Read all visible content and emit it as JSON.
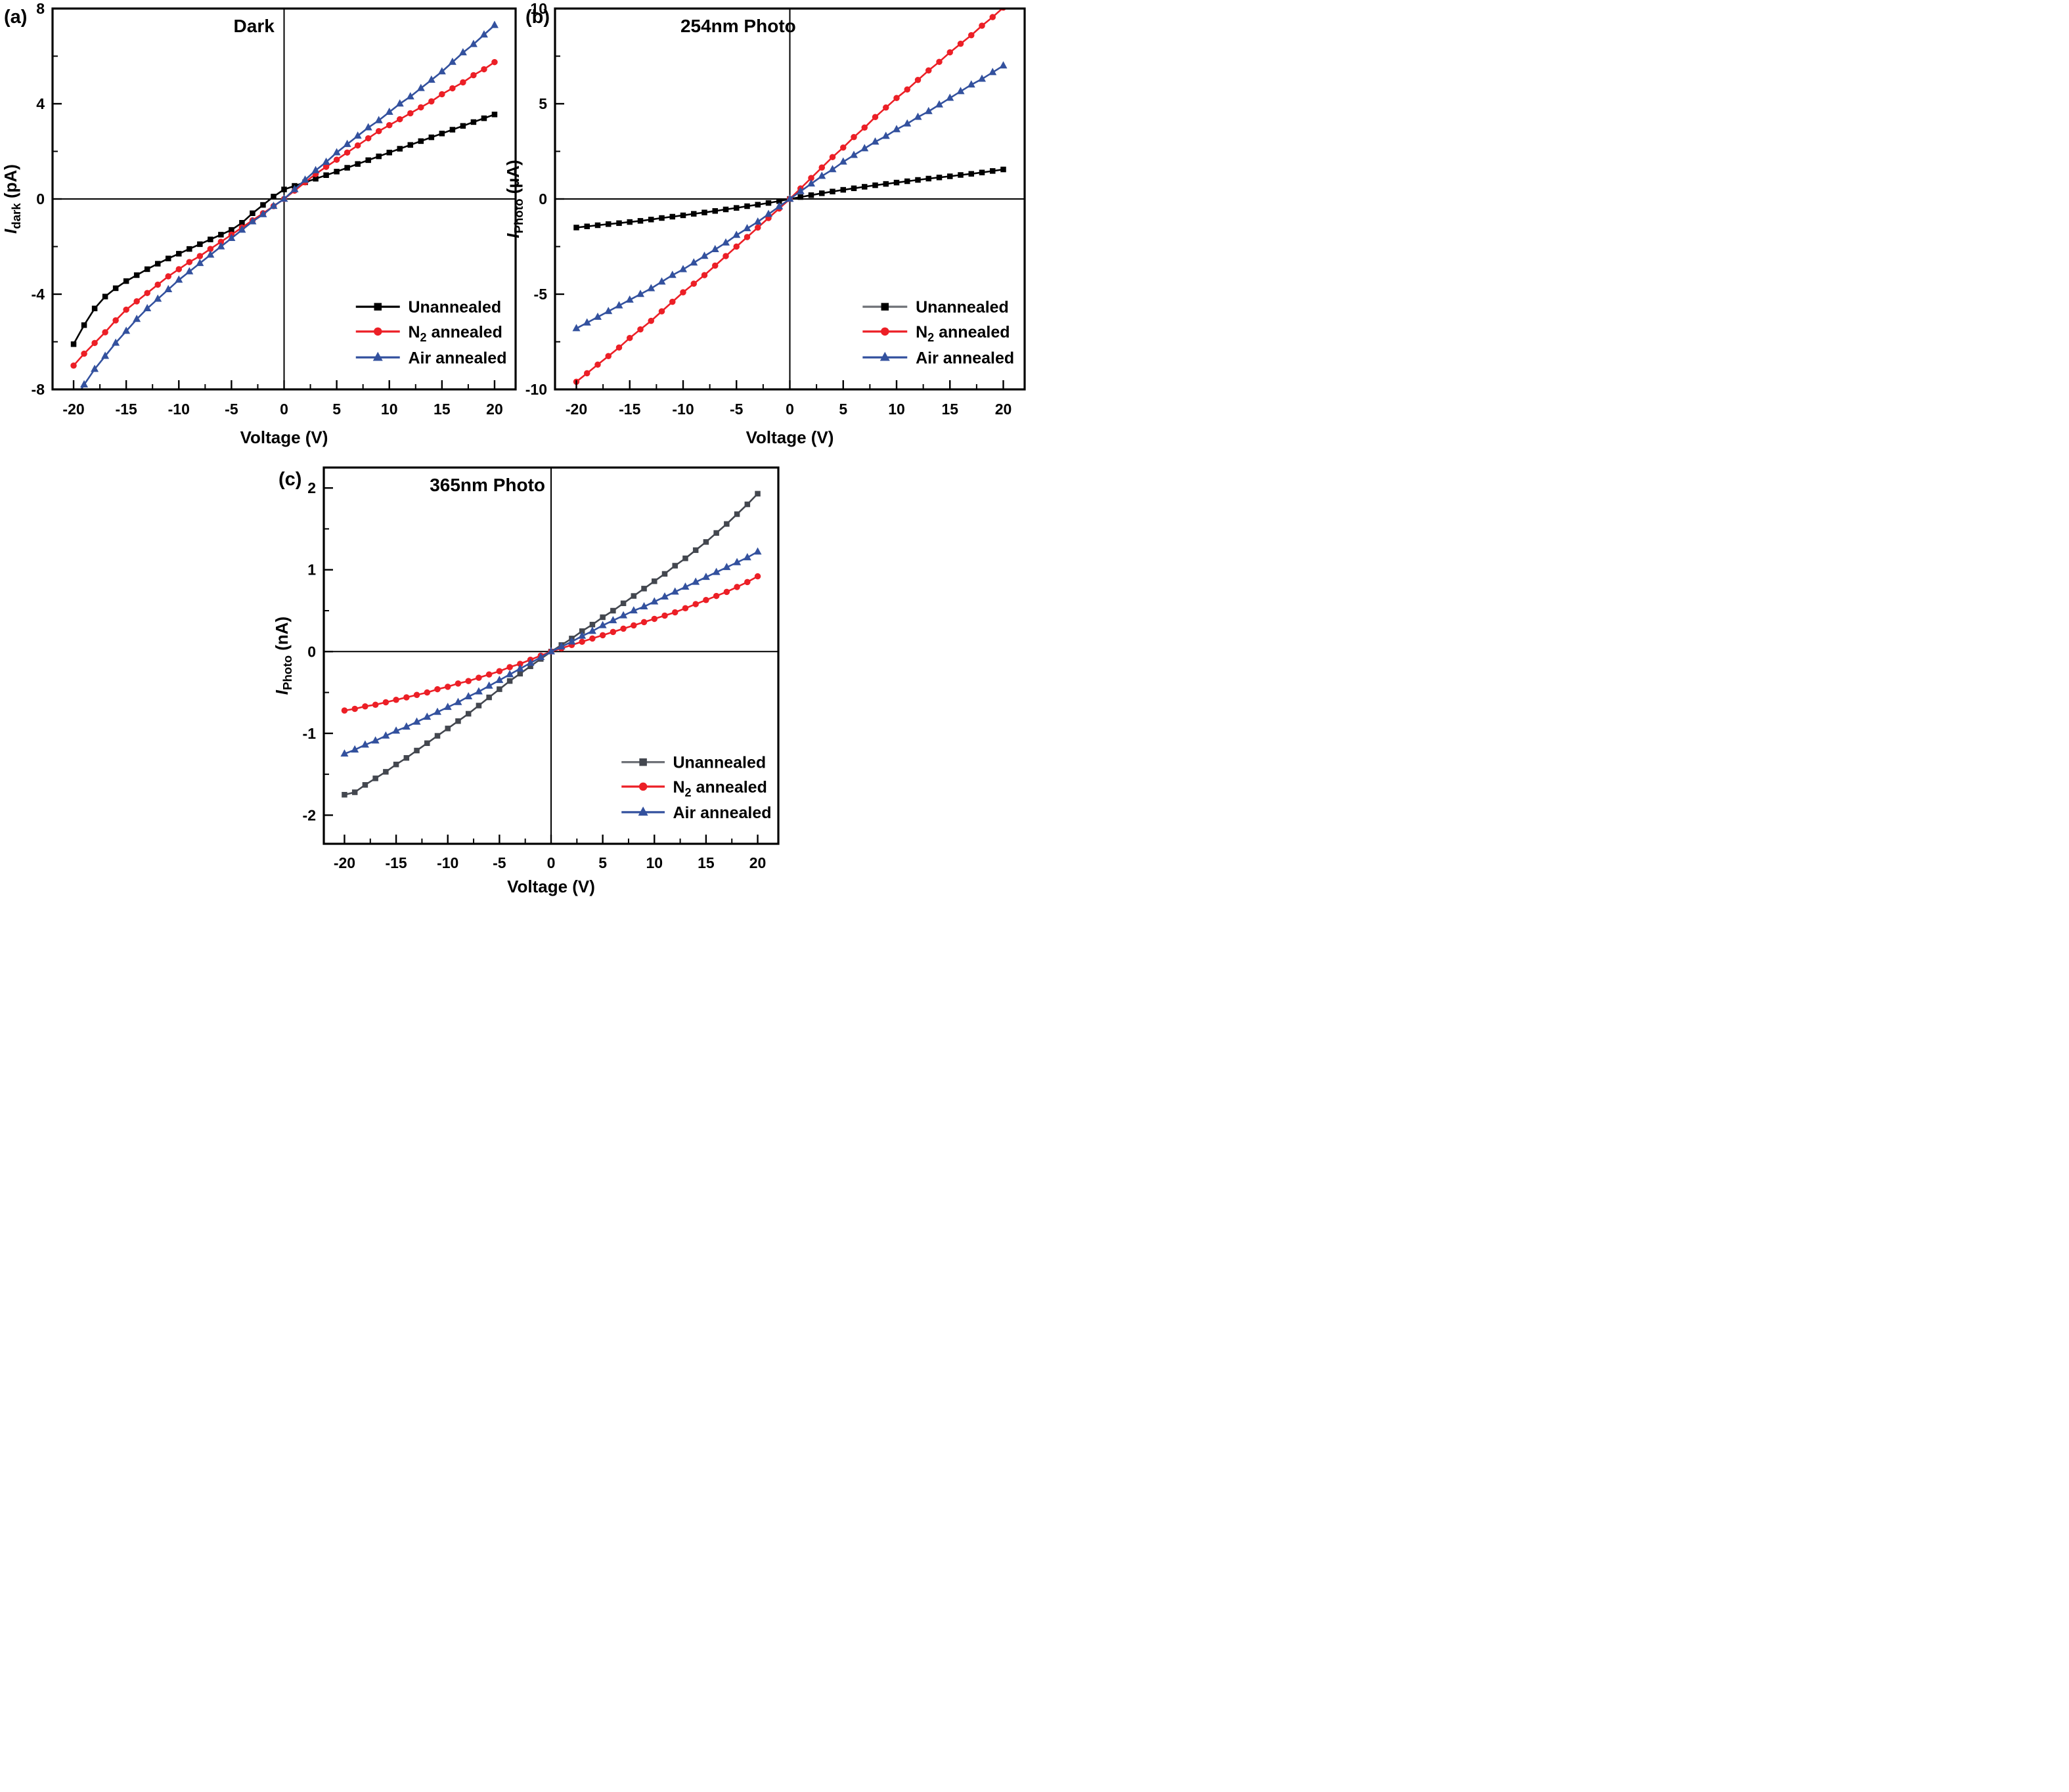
{
  "figure_title": "I-V characteristics panels",
  "colors": {
    "black": "#000000",
    "red": "#ec1f26",
    "blue": "#33519e",
    "gray": "#43474f",
    "legend_gray_line": "#6e7177",
    "axis": "#000000",
    "background": "#ffffff"
  },
  "chart_data": [
    {
      "id": "a",
      "panel_label": "(a)",
      "type": "line",
      "title": "Dark",
      "xlabel": "Voltage (V)",
      "ylabel_segments": [
        {
          "t": "I",
          "i": true
        },
        {
          "t": "dark",
          "s": true
        },
        {
          "t": " (pA)"
        }
      ],
      "xlim": [
        -22,
        22
      ],
      "ylim": [
        -8,
        8
      ],
      "xticks": [
        -20,
        -15,
        -10,
        -5,
        0,
        5,
        10,
        15,
        20
      ],
      "xticks_minor": [
        -17.5,
        -12.5,
        -7.5,
        -2.5,
        2.5,
        7.5,
        12.5,
        17.5
      ],
      "yticks": [
        -8,
        -4,
        0,
        4,
        8
      ],
      "yticks_minor": [
        -6,
        -2,
        2,
        6
      ],
      "zero_lines": true,
      "grid": false,
      "legend_position": "lower-right-inside",
      "x": [
        -20,
        -19,
        -18,
        -17,
        -16,
        -15,
        -14,
        -13,
        -12,
        -11,
        -10,
        -9,
        -8,
        -7,
        -6,
        -5,
        -4,
        -3,
        -2,
        -1,
        0,
        1,
        2,
        3,
        4,
        5,
        6,
        7,
        8,
        9,
        10,
        11,
        12,
        13,
        14,
        15,
        16,
        17,
        18,
        19,
        20
      ],
      "series": [
        {
          "name_segments": [
            {
              "t": "Unannealed"
            }
          ],
          "color": "#000000",
          "legend_line_color": "#000000",
          "marker": "square",
          "y": [
            -6.1,
            -5.3,
            -4.6,
            -4.1,
            -3.75,
            -3.45,
            -3.2,
            -2.95,
            -2.72,
            -2.5,
            -2.3,
            -2.1,
            -1.9,
            -1.7,
            -1.5,
            -1.3,
            -1.0,
            -0.6,
            -0.25,
            0.1,
            0.4,
            0.55,
            0.7,
            0.85,
            1.0,
            1.15,
            1.31,
            1.47,
            1.63,
            1.79,
            1.95,
            2.11,
            2.27,
            2.43,
            2.59,
            2.75,
            2.91,
            3.07,
            3.23,
            3.39,
            3.55
          ]
        },
        {
          "name_segments": [
            {
              "t": "N"
            },
            {
              "t": "2",
              "s": true
            },
            {
              "t": " annealed"
            }
          ],
          "color": "#ec1f26",
          "legend_line_color": "#ec1f26",
          "marker": "circle",
          "y": [
            -7.0,
            -6.5,
            -6.05,
            -5.6,
            -5.1,
            -4.65,
            -4.3,
            -3.95,
            -3.6,
            -3.25,
            -2.95,
            -2.65,
            -2.4,
            -2.1,
            -1.8,
            -1.5,
            -1.2,
            -0.9,
            -0.6,
            -0.3,
            0,
            0.35,
            0.7,
            1.05,
            1.35,
            1.65,
            1.95,
            2.25,
            2.55,
            2.85,
            3.1,
            3.35,
            3.6,
            3.85,
            4.1,
            4.4,
            4.65,
            4.9,
            5.2,
            5.45,
            5.75
          ]
        },
        {
          "name_segments": [
            {
              "t": "Air annealed"
            }
          ],
          "color": "#33519e",
          "legend_line_color": "#33519e",
          "marker": "triangle",
          "x": [
            -19.5,
            -19,
            -18,
            -17,
            -16,
            -15,
            -14,
            -13,
            -12,
            -11,
            -10,
            -9,
            -8,
            -7,
            -6,
            -5,
            -4,
            -3,
            -2,
            -1,
            0,
            1,
            2,
            3,
            4,
            5,
            6,
            7,
            8,
            9,
            10,
            11,
            12,
            13,
            14,
            15,
            16,
            17,
            18,
            19,
            20
          ],
          "y": [
            -8.15,
            -7.8,
            -7.15,
            -6.6,
            -6.05,
            -5.55,
            -5.05,
            -4.6,
            -4.2,
            -3.8,
            -3.4,
            -3.05,
            -2.7,
            -2.35,
            -2.0,
            -1.65,
            -1.3,
            -0.95,
            -0.65,
            -0.3,
            0,
            0.4,
            0.8,
            1.2,
            1.55,
            1.95,
            2.3,
            2.65,
            3.0,
            3.3,
            3.65,
            4.0,
            4.3,
            4.65,
            5.0,
            5.35,
            5.75,
            6.15,
            6.5,
            6.9,
            7.3
          ]
        }
      ]
    },
    {
      "id": "b",
      "panel_label": "(b)",
      "type": "line",
      "title": "254nm Photo",
      "xlabel": "Voltage (V)",
      "ylabel_segments": [
        {
          "t": "I",
          "i": true
        },
        {
          "t": "Photo",
          "s": true
        },
        {
          "t": " (μA)"
        }
      ],
      "xlim": [
        -22,
        22
      ],
      "ylim": [
        -10,
        10
      ],
      "xticks": [
        -20,
        -15,
        -10,
        -5,
        0,
        5,
        10,
        15,
        20
      ],
      "xticks_minor": [
        -17.5,
        -12.5,
        -7.5,
        -2.5,
        2.5,
        7.5,
        12.5,
        17.5
      ],
      "yticks": [
        -10,
        -5,
        0,
        5,
        10
      ],
      "yticks_minor": [
        -7.5,
        -2.5,
        2.5,
        7.5
      ],
      "zero_lines": true,
      "grid": false,
      "legend_position": "lower-right-inside",
      "x": [
        -20,
        -19,
        -18,
        -17,
        -16,
        -15,
        -14,
        -13,
        -12,
        -11,
        -10,
        -9,
        -8,
        -7,
        -6,
        -5,
        -4,
        -3,
        -2,
        -1,
        0,
        1,
        2,
        3,
        4,
        5,
        6,
        7,
        8,
        9,
        10,
        11,
        12,
        13,
        14,
        15,
        16,
        17,
        18,
        19,
        20
      ],
      "series": [
        {
          "name_segments": [
            {
              "t": "Unannealed"
            }
          ],
          "color": "#000000",
          "legend_line_color": "#6e7177",
          "marker": "square",
          "y": [
            -1.5,
            -1.44,
            -1.38,
            -1.32,
            -1.27,
            -1.21,
            -1.15,
            -1.08,
            -1.0,
            -0.93,
            -0.86,
            -0.78,
            -0.71,
            -0.63,
            -0.55,
            -0.47,
            -0.38,
            -0.3,
            -0.21,
            -0.11,
            0,
            0.1,
            0.2,
            0.3,
            0.39,
            0.48,
            0.56,
            0.64,
            0.72,
            0.79,
            0.86,
            0.93,
            1.0,
            1.07,
            1.13,
            1.19,
            1.26,
            1.32,
            1.39,
            1.47,
            1.55
          ]
        },
        {
          "name_segments": [
            {
              "t": "N"
            },
            {
              "t": "2",
              "s": true
            },
            {
              "t": " annealed"
            }
          ],
          "color": "#ec1f26",
          "legend_line_color": "#ec1f26",
          "marker": "circle",
          "y": [
            -9.6,
            -9.15,
            -8.7,
            -8.25,
            -7.8,
            -7.3,
            -6.85,
            -6.4,
            -5.9,
            -5.4,
            -4.9,
            -4.45,
            -4.0,
            -3.5,
            -3.0,
            -2.5,
            -2.0,
            -1.5,
            -1.0,
            -0.5,
            0,
            0.55,
            1.1,
            1.65,
            2.2,
            2.7,
            3.25,
            3.75,
            4.3,
            4.8,
            5.3,
            5.75,
            6.25,
            6.75,
            7.2,
            7.7,
            8.15,
            8.6,
            9.1,
            9.55,
            10.05
          ]
        },
        {
          "name_segments": [
            {
              "t": "Air annealed"
            }
          ],
          "color": "#33519e",
          "legend_line_color": "#33519e",
          "marker": "triangle",
          "y": [
            -6.8,
            -6.5,
            -6.2,
            -5.9,
            -5.6,
            -5.3,
            -5.0,
            -4.7,
            -4.35,
            -4.0,
            -3.7,
            -3.35,
            -3.0,
            -2.65,
            -2.3,
            -1.9,
            -1.55,
            -1.2,
            -0.8,
            -0.4,
            0,
            0.4,
            0.8,
            1.2,
            1.55,
            1.95,
            2.3,
            2.65,
            3.0,
            3.3,
            3.65,
            3.95,
            4.3,
            4.6,
            4.95,
            5.3,
            5.65,
            6.0,
            6.3,
            6.65,
            7.0
          ]
        }
      ]
    },
    {
      "id": "c",
      "panel_label": "(c)",
      "type": "line",
      "title": "365nm Photo",
      "xlabel": "Voltage (V)",
      "ylabel_segments": [
        {
          "t": "I",
          "i": true
        },
        {
          "t": "Photo",
          "s": true
        },
        {
          "t": " (nA)"
        }
      ],
      "xlim": [
        -22,
        22
      ],
      "ylim": [
        -2.35,
        2.25
      ],
      "xticks": [
        -20,
        -15,
        -10,
        -5,
        0,
        5,
        10,
        15,
        20
      ],
      "xticks_minor": [
        -17.5,
        -12.5,
        -7.5,
        -2.5,
        2.5,
        7.5,
        12.5,
        17.5
      ],
      "yticks": [
        -2,
        -1,
        0,
        1,
        2
      ],
      "yticks_minor": [
        -1.5,
        -0.5,
        0.5,
        1.5
      ],
      "zero_lines": true,
      "grid": false,
      "legend_position": "lower-right-inside",
      "x": [
        -20,
        -19,
        -18,
        -17,
        -16,
        -15,
        -14,
        -13,
        -12,
        -11,
        -10,
        -9,
        -8,
        -7,
        -6,
        -5,
        -4,
        -3,
        -2,
        -1,
        0,
        1,
        2,
        3,
        4,
        5,
        6,
        7,
        8,
        9,
        10,
        11,
        12,
        13,
        14,
        15,
        16,
        17,
        18,
        19,
        20
      ],
      "series": [
        {
          "name_segments": [
            {
              "t": "Unannealed"
            }
          ],
          "color": "#43474f",
          "legend_line_color": "#6e7177",
          "marker": "square",
          "y": [
            -1.75,
            -1.72,
            -1.63,
            -1.55,
            -1.47,
            -1.38,
            -1.3,
            -1.21,
            -1.12,
            -1.03,
            -0.94,
            -0.85,
            -0.76,
            -0.66,
            -0.56,
            -0.46,
            -0.36,
            -0.27,
            -0.18,
            -0.09,
            0,
            0.08,
            0.16,
            0.25,
            0.33,
            0.42,
            0.5,
            0.59,
            0.68,
            0.77,
            0.86,
            0.95,
            1.05,
            1.14,
            1.24,
            1.34,
            1.45,
            1.56,
            1.68,
            1.8,
            1.93
          ]
        },
        {
          "name_segments": [
            {
              "t": "N"
            },
            {
              "t": "2",
              "s": true
            },
            {
              "t": " annealed"
            }
          ],
          "color": "#ec1f26",
          "legend_line_color": "#ec1f26",
          "marker": "circle",
          "y": [
            -0.72,
            -0.7,
            -0.67,
            -0.65,
            -0.62,
            -0.59,
            -0.56,
            -0.53,
            -0.5,
            -0.46,
            -0.43,
            -0.39,
            -0.36,
            -0.32,
            -0.28,
            -0.24,
            -0.19,
            -0.15,
            -0.1,
            -0.05,
            0,
            0.04,
            0.08,
            0.12,
            0.16,
            0.2,
            0.24,
            0.28,
            0.32,
            0.36,
            0.4,
            0.44,
            0.48,
            0.53,
            0.58,
            0.63,
            0.68,
            0.73,
            0.79,
            0.85,
            0.92
          ]
        },
        {
          "name_segments": [
            {
              "t": "Air annealed"
            }
          ],
          "color": "#33519e",
          "legend_line_color": "#33519e",
          "marker": "triangle",
          "y": [
            -1.25,
            -1.2,
            -1.14,
            -1.09,
            -1.03,
            -0.97,
            -0.92,
            -0.86,
            -0.8,
            -0.74,
            -0.68,
            -0.62,
            -0.55,
            -0.49,
            -0.42,
            -0.35,
            -0.28,
            -0.21,
            -0.14,
            -0.07,
            0,
            0.06,
            0.12,
            0.19,
            0.25,
            0.32,
            0.38,
            0.44,
            0.5,
            0.55,
            0.61,
            0.67,
            0.73,
            0.79,
            0.85,
            0.91,
            0.97,
            1.03,
            1.09,
            1.15,
            1.22
          ]
        }
      ]
    }
  ]
}
